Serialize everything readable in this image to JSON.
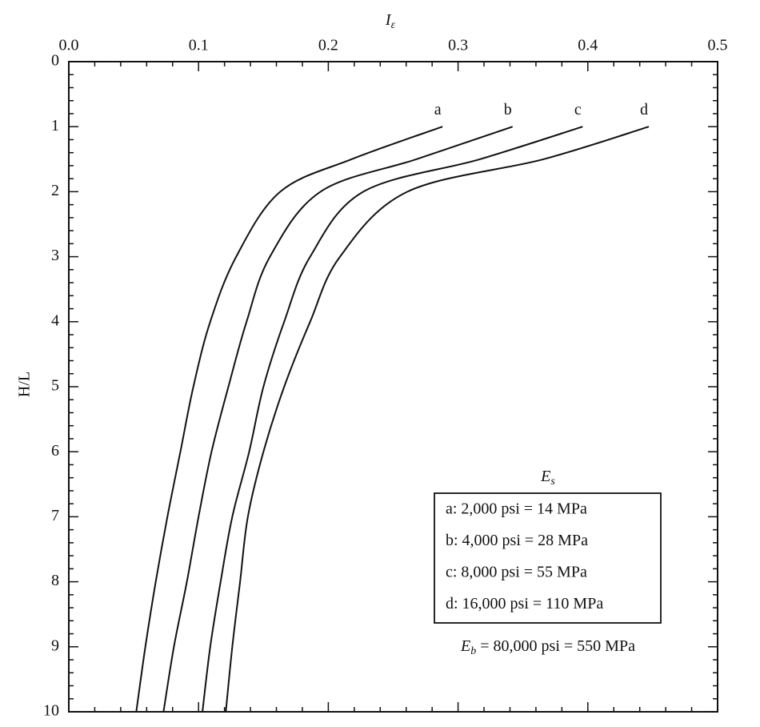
{
  "chart_data": {
    "type": "line",
    "x_axis_label": [
      "I",
      "ε"
    ],
    "y_axis_label": "H/L",
    "x": [
      1,
      1.5,
      2,
      3,
      4,
      5,
      6,
      7,
      8,
      9,
      10
    ],
    "xlim": [
      0,
      0.5
    ],
    "xticks": [
      {
        "value": 0,
        "label": "0.0"
      },
      0.1,
      0.2,
      0.3,
      0.4,
      0.5
    ],
    "ylim": [
      0,
      10
    ],
    "yticks": [
      0,
      1,
      2,
      3,
      4,
      5,
      6,
      7,
      8,
      9,
      10
    ],
    "y_inverted": true,
    "x_axis_position": "top",
    "series": [
      {
        "name": "a",
        "legend_label": "a: 2,000 psi = 14 MPa",
        "color": "#111111",
        "values": [
          0.288,
          0.218,
          0.163,
          0.129,
          0.109,
          0.096,
          0.086,
          0.076,
          0.067,
          0.059,
          0.052
        ]
      },
      {
        "name": "b",
        "legend_label": "b: 4,000 psi = 28 MPa",
        "color": "#111111",
        "values": [
          0.342,
          0.268,
          0.194,
          0.155,
          0.137,
          0.123,
          0.11,
          0.1,
          0.091,
          0.081,
          0.073
        ]
      },
      {
        "name": "c",
        "legend_label": "c: 8,000 psi = 55 MPa",
        "color": "#111111",
        "values": [
          0.396,
          0.317,
          0.227,
          0.186,
          0.166,
          0.15,
          0.139,
          0.126,
          0.117,
          0.109,
          0.103
        ]
      },
      {
        "name": "d",
        "legend_label": "d: 16,000 psi = 110 MPa",
        "color": "#111111",
        "values": [
          0.447,
          0.366,
          0.261,
          0.209,
          0.186,
          0.166,
          0.15,
          0.138,
          0.132,
          0.126,
          0.121
        ]
      }
    ],
    "legend_title": [
      "E",
      "s"
    ],
    "annotation": [
      "E",
      "b",
      " = 80,000 psi = 550 MPa"
    ]
  }
}
